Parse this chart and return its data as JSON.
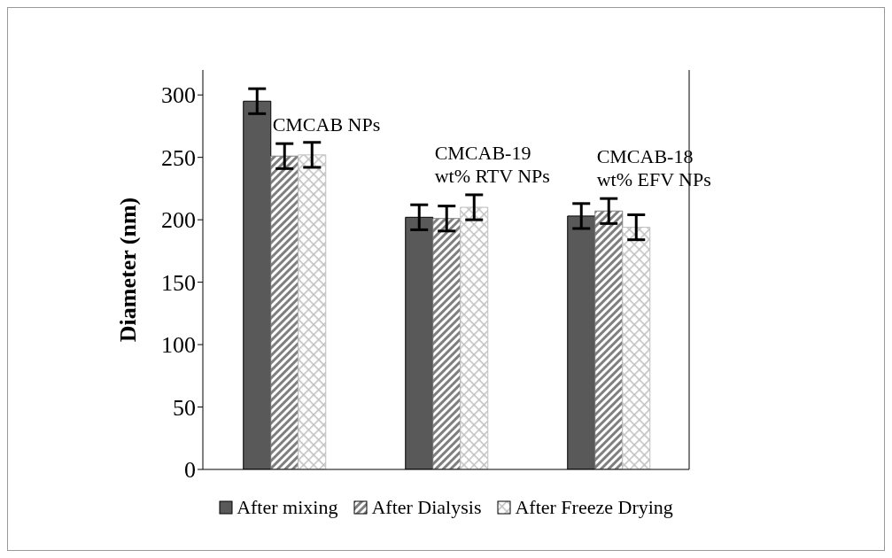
{
  "chart_data": {
    "type": "bar",
    "ylabel": "Diameter (nm)",
    "categories": [
      "CMCAB NPs",
      "CMCAB-19 wt% RTV NPs",
      "CMCAB-18 wt% EFV NPs"
    ],
    "series": [
      {
        "name": "After mixing",
        "color": "#595959",
        "values": [
          295,
          202,
          203
        ],
        "errors": [
          10,
          10,
          10
        ]
      },
      {
        "name": "After Dialysis",
        "color": "#7f7f7f",
        "values": [
          251,
          201,
          207
        ],
        "errors": [
          10,
          10,
          10
        ]
      },
      {
        "name": "After Freeze Drying",
        "color": "#bfbfbf",
        "values": [
          252,
          210,
          194
        ],
        "errors": [
          10,
          10,
          10
        ]
      }
    ],
    "ylim": [
      0,
      320
    ],
    "yticks": [
      0,
      50,
      100,
      150,
      200,
      250,
      300
    ],
    "grid": false,
    "legend": "bottom"
  }
}
